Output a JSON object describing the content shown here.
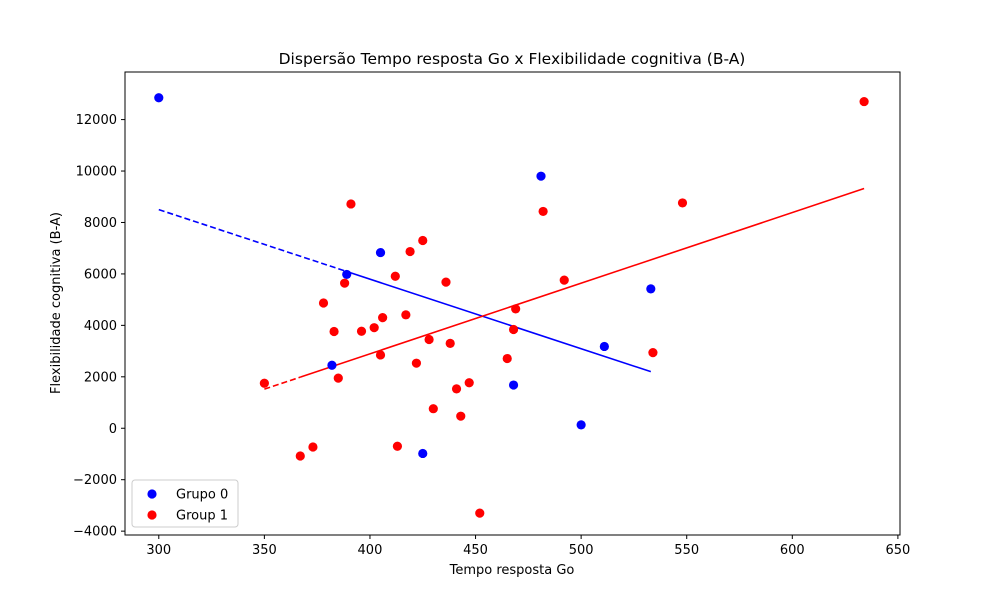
{
  "chart_data": {
    "type": "scatter",
    "title": "Dispersão Tempo resposta Go x Flexibilidade cognitiva (B-A)",
    "xlabel": "Tempo resposta Go",
    "ylabel": "Flexibilidade cognitiva (B-A)",
    "xlim": [
      284,
      651
    ],
    "ylim": [
      -4150,
      13850
    ],
    "xticks": [
      300,
      350,
      400,
      450,
      500,
      550,
      600,
      650
    ],
    "yticks": [
      -4000,
      -2000,
      0,
      2000,
      4000,
      6000,
      8000,
      10000,
      12000
    ],
    "grid": false,
    "legend_position": "lower-left",
    "series": [
      {
        "name": "Grupo 0",
        "color": "#0000ff",
        "points": [
          [
            300,
            12850
          ],
          [
            389,
            5980
          ],
          [
            405,
            6830
          ],
          [
            382,
            2450
          ],
          [
            425,
            -980
          ],
          [
            468,
            1680
          ],
          [
            481,
            9800
          ],
          [
            500,
            130
          ],
          [
            511,
            3180
          ],
          [
            533,
            5420
          ]
        ],
        "trend": {
          "x_dashed": [
            300,
            389
          ],
          "x_solid": [
            389,
            533
          ],
          "y_at_x_start": 8500,
          "y_at_x_end": 2200
        }
      },
      {
        "name": "Group 1",
        "color": "#ff0000",
        "points": [
          [
            350,
            1750
          ],
          [
            367,
            -1080
          ],
          [
            373,
            -730
          ],
          [
            378,
            4870
          ],
          [
            383,
            3760
          ],
          [
            385,
            1950
          ],
          [
            388,
            5640
          ],
          [
            391,
            8720
          ],
          [
            396,
            3770
          ],
          [
            402,
            3910
          ],
          [
            405,
            2850
          ],
          [
            406,
            4300
          ],
          [
            412,
            5910
          ],
          [
            413,
            -700
          ],
          [
            417,
            4410
          ],
          [
            419,
            6870
          ],
          [
            422,
            2530
          ],
          [
            425,
            7300
          ],
          [
            428,
            3450
          ],
          [
            430,
            760
          ],
          [
            436,
            5680
          ],
          [
            438,
            3300
          ],
          [
            441,
            1530
          ],
          [
            443,
            470
          ],
          [
            447,
            1770
          ],
          [
            452,
            -3300
          ],
          [
            465,
            2710
          ],
          [
            468,
            3840
          ],
          [
            469,
            4640
          ],
          [
            482,
            8430
          ],
          [
            492,
            5760
          ],
          [
            534,
            2940
          ],
          [
            548,
            8760
          ],
          [
            634,
            12700
          ]
        ],
        "trend": {
          "x_dashed": [
            350,
            367
          ],
          "x_solid": [
            367,
            634
          ],
          "y_at_x_start": 1520,
          "y_at_x_end": 9320
        }
      }
    ]
  }
}
